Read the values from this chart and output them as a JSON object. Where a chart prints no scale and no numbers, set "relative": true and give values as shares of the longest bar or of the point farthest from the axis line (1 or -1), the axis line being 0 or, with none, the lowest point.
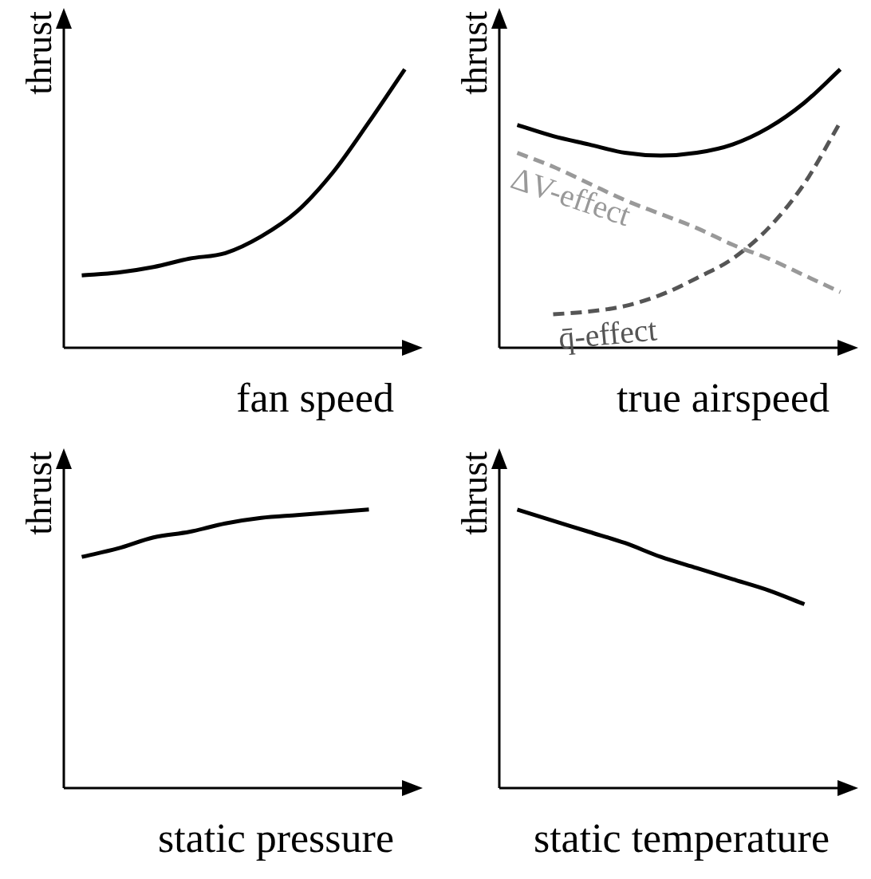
{
  "chart_data": [
    {
      "type": "line",
      "relative": true,
      "xlabel": "fan speed",
      "ylabel": "thrust",
      "categories": [
        null,
        null,
        null,
        null,
        null,
        null,
        null,
        null,
        null,
        null
      ],
      "legend": false,
      "marker": "none",
      "series": [
        {
          "color": "#000000",
          "line_style": "solid",
          "values": [
            0.26,
            0.27,
            0.29,
            0.32,
            0.34,
            0.4,
            0.49,
            0.63,
            0.81,
            1
          ]
        }
      ]
    },
    {
      "type": "line",
      "relative": true,
      "xlabel": "true airspeed",
      "ylabel": "thrust",
      "categories": [
        null,
        null,
        null,
        null,
        null,
        null,
        null,
        null,
        null,
        null
      ],
      "legend": false,
      "marker": "none",
      "series": [
        {
          "color": "#000000",
          "line_style": "solid",
          "values": [
            0.8,
            0.76,
            0.73,
            0.7,
            0.69,
            0.7,
            0.73,
            0.79,
            0.88,
            1
          ]
        },
        {
          "name": "ΔV-effect",
          "color": "#999999",
          "line_style": "dashed",
          "values": [
            0.7,
            0.65,
            0.59,
            0.53,
            0.48,
            0.43,
            0.37,
            0.32,
            0.26,
            0.2
          ]
        },
        {
          "name": "q̄-effect",
          "color": "#555555",
          "line_style": "dashed",
          "values": [
            null,
            0.12,
            0.13,
            0.15,
            0.19,
            0.25,
            0.32,
            0.43,
            0.59,
            0.81
          ]
        }
      ]
    },
    {
      "type": "line",
      "relative": true,
      "xlabel": "static pressure",
      "ylabel": "thrust",
      "categories": [
        null,
        null,
        null,
        null,
        null,
        null,
        null,
        null,
        null,
        null
      ],
      "legend": false,
      "marker": "none",
      "series": [
        {
          "color": "#000000",
          "line_style": "solid",
          "values": [
            0.83,
            0.86,
            0.9,
            0.92,
            0.95,
            0.97,
            0.98,
            0.99,
            1,
            null
          ]
        }
      ]
    },
    {
      "type": "line",
      "relative": true,
      "xlabel": "static temperature",
      "ylabel": "thrust",
      "categories": [
        null,
        null,
        null,
        null,
        null,
        null,
        null,
        null,
        null,
        null
      ],
      "legend": false,
      "marker": "none",
      "series": [
        {
          "color": "#000000",
          "line_style": "solid",
          "values": [
            1,
            0.96,
            0.92,
            0.88,
            0.83,
            0.79,
            0.75,
            0.71,
            0.66,
            null
          ]
        }
      ]
    }
  ]
}
